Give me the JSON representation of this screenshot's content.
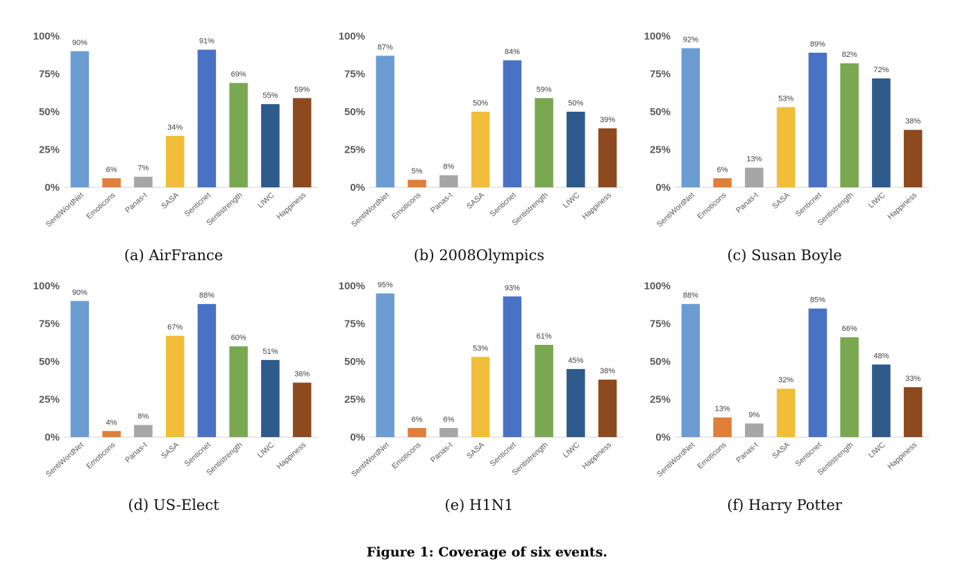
{
  "figure_caption": "Figure 1: Coverage of six events.",
  "colors": [
    "#6b9dd3",
    "#e07f3a",
    "#a6a6a6",
    "#f2be3a",
    "#4a72c4",
    "#79a850",
    "#2e5a8c",
    "#8e4a1f"
  ],
  "chart_data": [
    {
      "type": "bar",
      "caption": "(a) AirFrance",
      "categories": [
        "SentiWordNet",
        "Emoticons",
        "Panas-t",
        "SASA",
        "Senticnet",
        "Sentistrength",
        "LIWC",
        "Happiness"
      ],
      "values": [
        90,
        6,
        7,
        34,
        91,
        69,
        55,
        59
      ],
      "data_labels": [
        "90%",
        "6%",
        "7%",
        "34%",
        "91%",
        "69%",
        "55%",
        "59%"
      ],
      "y_ticks": [
        "0%",
        "25%",
        "50%",
        "75%",
        "100%"
      ],
      "ylim": [
        0,
        100
      ]
    },
    {
      "type": "bar",
      "caption": "(b) 2008Olympics",
      "categories": [
        "SentiWordNet",
        "Emoticons",
        "Panas-t",
        "SASA",
        "Senticnet",
        "Sentistrength",
        "LIWC",
        "Happiness"
      ],
      "values": [
        87,
        5,
        8,
        50,
        84,
        59,
        50,
        39
      ],
      "data_labels": [
        "87%",
        "5%",
        "8%",
        "50%",
        "84%",
        "59%",
        "50%",
        "39%"
      ],
      "y_ticks": [
        "0%",
        "25%",
        "50%",
        "75%",
        "100%"
      ],
      "ylim": [
        0,
        100
      ]
    },
    {
      "type": "bar",
      "caption": "(c) Susan Boyle",
      "categories": [
        "SentiWordNet",
        "Emoticons",
        "Panas-t",
        "SASA",
        "Senticnet",
        "Sentistrength",
        "LIWC",
        "Happiness"
      ],
      "values": [
        92,
        6,
        13,
        53,
        89,
        82,
        72,
        38
      ],
      "data_labels": [
        "92%",
        "6%",
        "13%",
        "53%",
        "89%",
        "82%",
        "72%",
        "38%"
      ],
      "y_ticks": [
        "0%",
        "25%",
        "50%",
        "75%",
        "100%"
      ],
      "ylim": [
        0,
        100
      ]
    },
    {
      "type": "bar",
      "caption": "(d) US-Elect",
      "categories": [
        "SentiWordNet",
        "Emoticons",
        "Panas-t",
        "SASA",
        "Senticnet",
        "Sentistrength",
        "LIWC",
        "Happiness"
      ],
      "values": [
        90,
        4,
        8,
        67,
        88,
        60,
        51,
        36
      ],
      "data_labels": [
        "90%",
        "4%",
        "8%",
        "67%",
        "88%",
        "60%",
        "51%",
        "36%"
      ],
      "y_ticks": [
        "0%",
        "25%",
        "50%",
        "75%",
        "100%"
      ],
      "ylim": [
        0,
        100
      ]
    },
    {
      "type": "bar",
      "caption": "(e) H1N1",
      "categories": [
        "SentiWordNet",
        "Emoticons",
        "Panas-t",
        "SASA",
        "Senticnet",
        "Sentistrength",
        "LIWC",
        "Happiness"
      ],
      "values": [
        95,
        6,
        6,
        53,
        93,
        61,
        45,
        38
      ],
      "data_labels": [
        "95%",
        "6%",
        "6%",
        "53%",
        "93%",
        "61%",
        "45%",
        "38%"
      ],
      "y_ticks": [
        "0%",
        "25%",
        "50%",
        "75%",
        "100%"
      ],
      "ylim": [
        0,
        100
      ]
    },
    {
      "type": "bar",
      "caption": "(f) Harry Potter",
      "categories": [
        "SentiWordNet",
        "Emoticons",
        "Panas-t",
        "SASA",
        "Senticnet",
        "Sentistrength",
        "LIWC",
        "Happiness"
      ],
      "values": [
        88,
        13,
        9,
        32,
        85,
        66,
        48,
        33
      ],
      "data_labels": [
        "88%",
        "13%",
        "9%",
        "32%",
        "85%",
        "66%",
        "48%",
        "33%"
      ],
      "y_ticks": [
        "0%",
        "25%",
        "50%",
        "75%",
        "100%"
      ],
      "ylim": [
        0,
        100
      ]
    }
  ]
}
